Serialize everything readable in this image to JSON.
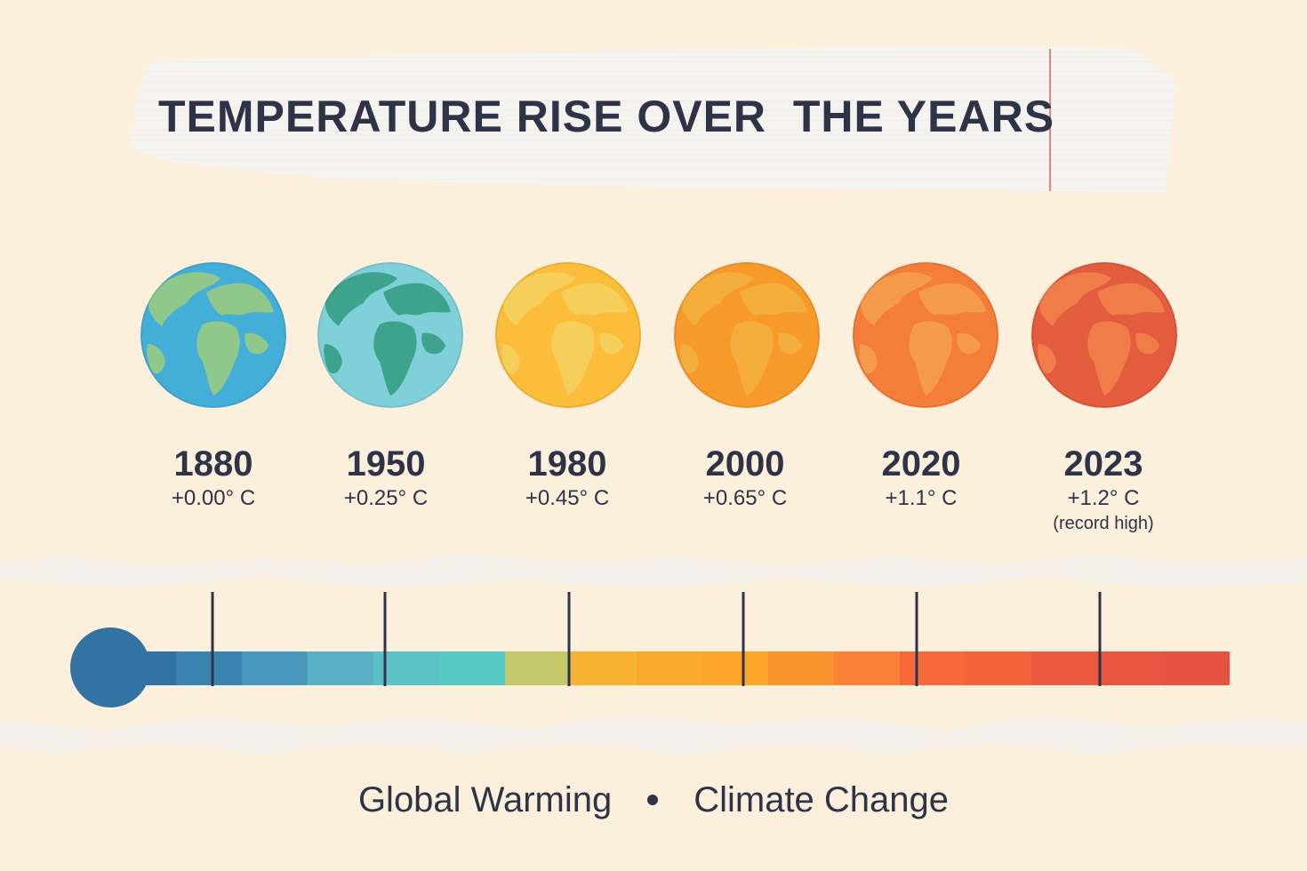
{
  "title": "TEMPERATURE RISE OVER  THE YEARS",
  "entries": [
    {
      "year": "1880",
      "temp": "+0.00° C",
      "note": "",
      "ocean": "#43aed8",
      "land": "#8fc88a"
    },
    {
      "year": "1950",
      "temp": "+0.25° C",
      "note": "",
      "ocean": "#7fd0d8",
      "land": "#3da38c"
    },
    {
      "year": "1980",
      "temp": "+0.45° C",
      "note": "",
      "ocean": "#fbbd3a",
      "land": "#f6ce5a"
    },
    {
      "year": "2000",
      "temp": "+0.65° C",
      "note": "",
      "ocean": "#f79a2a",
      "land": "#f4ae3e"
    },
    {
      "year": "2020",
      "temp": "+1.1° C",
      "note": "",
      "ocean": "#f47d3a",
      "land": "#f59a4a"
    },
    {
      "year": "2023",
      "temp": "+1.2° C",
      "note": "(record high)",
      "ocean": "#e35c3e",
      "land": "#f07c4a"
    }
  ],
  "thermometer_colors": [
    "#3373a3",
    "#3a82b0",
    "#4a98bd",
    "#5aaec6",
    "#5bc3c8",
    "#57c9c4",
    "#c3c86a",
    "#f9b236",
    "#fba92c",
    "#fba52a",
    "#fa922e",
    "#f98234",
    "#f7693a",
    "#f2633c",
    "#ea5a3e",
    "#e5553f",
    "#e3513f"
  ],
  "footer": {
    "left": "Global Warming",
    "right": "Climate Change"
  }
}
